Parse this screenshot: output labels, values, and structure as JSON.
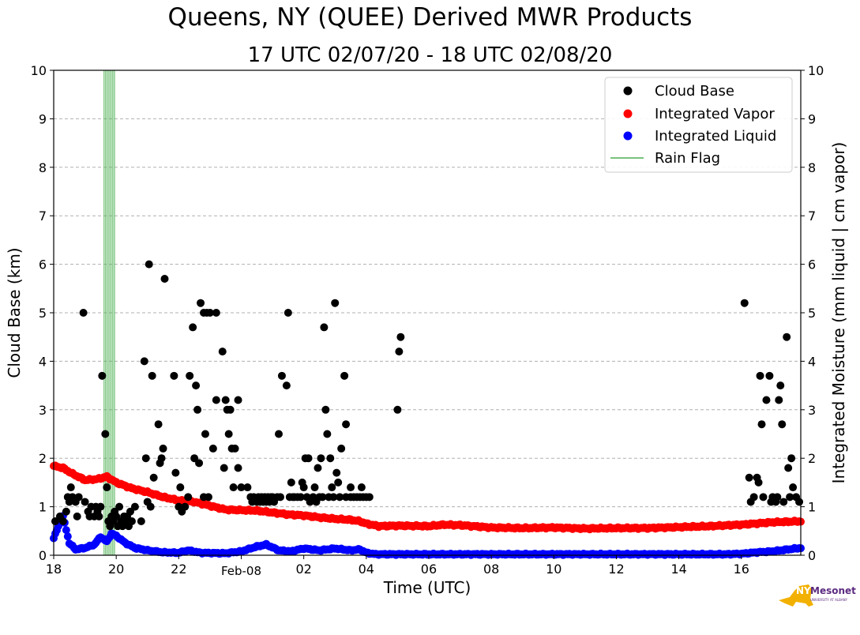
{
  "header": {
    "title": "Queens, NY (QUEE) Derived MWR Products",
    "subtitle": "17 UTC 02/07/20 - 18 UTC 02/08/20"
  },
  "logo": {
    "word1": "NYS",
    "word2": "Mesonet",
    "sub": "UNIVERSITY AT ALBANY"
  },
  "colors": {
    "cloud_base": "#000000",
    "vapor": "#ff0000",
    "liquid": "#0000ff",
    "rain": "#4caf50",
    "grid": "#b0b0b0"
  },
  "chart_data": {
    "type": "scatter",
    "xlabel": "Time (UTC)",
    "ylabel": "Cloud Base (km)",
    "y2label": "Integrated Moisture (mm liquid | cm vapor)",
    "xlim": [
      18,
      41.9
    ],
    "ylim": [
      0,
      10
    ],
    "y2lim": [
      0,
      10
    ],
    "x_ticks": [
      {
        "x": 18,
        "label": "18"
      },
      {
        "x": 20,
        "label": "20"
      },
      {
        "x": 22,
        "label": "22"
      },
      {
        "x": 24,
        "label": "Feb-08"
      },
      {
        "x": 26,
        "label": "02"
      },
      {
        "x": 28,
        "label": "04"
      },
      {
        "x": 30,
        "label": "06"
      },
      {
        "x": 32,
        "label": "08"
      },
      {
        "x": 34,
        "label": "10"
      },
      {
        "x": 36,
        "label": "12"
      },
      {
        "x": 38,
        "label": "14"
      },
      {
        "x": 40,
        "label": "16"
      }
    ],
    "y_ticks": [
      "0",
      "1",
      "2",
      "3",
      "4",
      "5",
      "6",
      "7",
      "8",
      "9",
      "10"
    ],
    "grid": true,
    "legend": {
      "position": "top-right",
      "entries": [
        "Cloud Base",
        "Integrated Vapor",
        "Integrated Liquid",
        "Rain Flag"
      ]
    },
    "rain_flag": {
      "start": 19.6,
      "end": 19.98
    },
    "vapor_keypoints": [
      [
        18.0,
        1.84
      ],
      [
        18.3,
        1.8
      ],
      [
        18.6,
        1.68
      ],
      [
        19.0,
        1.55
      ],
      [
        19.4,
        1.57
      ],
      [
        19.7,
        1.62
      ],
      [
        20.0,
        1.5
      ],
      [
        20.5,
        1.38
      ],
      [
        21.0,
        1.3
      ],
      [
        21.5,
        1.2
      ],
      [
        22.0,
        1.13
      ],
      [
        22.5,
        1.1
      ],
      [
        23.0,
        1.02
      ],
      [
        23.5,
        0.94
      ],
      [
        24.0,
        0.93
      ],
      [
        24.5,
        0.92
      ],
      [
        25.0,
        0.88
      ],
      [
        25.5,
        0.84
      ],
      [
        26.0,
        0.82
      ],
      [
        26.5,
        0.78
      ],
      [
        27.0,
        0.75
      ],
      [
        27.5,
        0.73
      ],
      [
        27.8,
        0.7
      ],
      [
        28.0,
        0.65
      ],
      [
        28.4,
        0.6
      ],
      [
        29.0,
        0.61
      ],
      [
        30.0,
        0.6
      ],
      [
        30.5,
        0.63
      ],
      [
        31.0,
        0.62
      ],
      [
        32.0,
        0.57
      ],
      [
        33.0,
        0.56
      ],
      [
        34.0,
        0.57
      ],
      [
        35.0,
        0.55
      ],
      [
        36.0,
        0.56
      ],
      [
        37.0,
        0.56
      ],
      [
        38.0,
        0.58
      ],
      [
        39.0,
        0.6
      ],
      [
        40.0,
        0.63
      ],
      [
        41.0,
        0.68
      ],
      [
        41.9,
        0.7
      ]
    ],
    "liquid_keypoints": [
      [
        18.0,
        0.35
      ],
      [
        18.15,
        0.6
      ],
      [
        18.3,
        0.8
      ],
      [
        18.5,
        0.25
      ],
      [
        18.7,
        0.12
      ],
      [
        19.0,
        0.15
      ],
      [
        19.3,
        0.22
      ],
      [
        19.5,
        0.38
      ],
      [
        19.7,
        0.28
      ],
      [
        19.85,
        0.45
      ],
      [
        20.0,
        0.4
      ],
      [
        20.3,
        0.25
      ],
      [
        20.6,
        0.15
      ],
      [
        21.0,
        0.1
      ],
      [
        21.5,
        0.06
      ],
      [
        22.0,
        0.05
      ],
      [
        22.3,
        0.1
      ],
      [
        22.7,
        0.05
      ],
      [
        23.5,
        0.04
      ],
      [
        24.0,
        0.08
      ],
      [
        24.5,
        0.18
      ],
      [
        24.8,
        0.22
      ],
      [
        25.2,
        0.1
      ],
      [
        25.6,
        0.08
      ],
      [
        26.0,
        0.14
      ],
      [
        26.5,
        0.1
      ],
      [
        27.0,
        0.14
      ],
      [
        27.5,
        0.1
      ],
      [
        27.8,
        0.12
      ],
      [
        28.0,
        0.05
      ],
      [
        28.3,
        0.02
      ],
      [
        29.0,
        0.02
      ],
      [
        30.0,
        0.02
      ],
      [
        35.0,
        0.02
      ],
      [
        39.5,
        0.02
      ],
      [
        40.0,
        0.03
      ],
      [
        40.5,
        0.06
      ],
      [
        41.0,
        0.08
      ],
      [
        41.5,
        0.12
      ],
      [
        41.9,
        0.15
      ]
    ],
    "cloud_base_points": [
      [
        18.05,
        0.7
      ],
      [
        18.2,
        0.8
      ],
      [
        18.3,
        0.7
      ],
      [
        18.4,
        0.9
      ],
      [
        18.45,
        1.2
      ],
      [
        18.5,
        1.1
      ],
      [
        18.55,
        1.4
      ],
      [
        18.6,
        1.2
      ],
      [
        18.7,
        1.1
      ],
      [
        18.75,
        0.8
      ],
      [
        18.8,
        1.2
      ],
      [
        18.95,
        5.0
      ],
      [
        19.0,
        1.1
      ],
      [
        19.1,
        0.9
      ],
      [
        19.15,
        0.8
      ],
      [
        19.2,
        1.0
      ],
      [
        19.3,
        0.8
      ],
      [
        19.35,
        1.0
      ],
      [
        19.4,
        0.9
      ],
      [
        19.45,
        0.8
      ],
      [
        19.5,
        1.0
      ],
      [
        19.55,
        3.7
      ],
      [
        19.65,
        2.5
      ],
      [
        19.7,
        1.4
      ],
      [
        19.75,
        0.7
      ],
      [
        19.8,
        0.6
      ],
      [
        19.85,
        0.8
      ],
      [
        19.9,
        0.7
      ],
      [
        19.95,
        0.9
      ],
      [
        20.0,
        0.8
      ],
      [
        20.05,
        0.6
      ],
      [
        20.1,
        1.0
      ],
      [
        20.15,
        0.7
      ],
      [
        20.2,
        0.6
      ],
      [
        20.25,
        0.8
      ],
      [
        20.3,
        0.7
      ],
      [
        20.35,
        0.8
      ],
      [
        20.4,
        0.6
      ],
      [
        20.45,
        0.9
      ],
      [
        20.5,
        0.7
      ],
      [
        20.6,
        1.0
      ],
      [
        20.8,
        0.7
      ],
      [
        20.9,
        4.0
      ],
      [
        20.95,
        2.0
      ],
      [
        21.0,
        1.1
      ],
      [
        21.05,
        6.0
      ],
      [
        21.1,
        1.0
      ],
      [
        21.15,
        3.7
      ],
      [
        21.2,
        1.6
      ],
      [
        21.35,
        2.7
      ],
      [
        21.4,
        1.9
      ],
      [
        21.45,
        2.0
      ],
      [
        21.5,
        2.2
      ],
      [
        21.55,
        5.7
      ],
      [
        21.85,
        3.7
      ],
      [
        21.9,
        1.7
      ],
      [
        22.0,
        1.0
      ],
      [
        22.05,
        1.4
      ],
      [
        22.1,
        0.9
      ],
      [
        22.2,
        1.0
      ],
      [
        22.3,
        1.2
      ],
      [
        22.35,
        3.7
      ],
      [
        22.45,
        4.7
      ],
      [
        22.5,
        2.0
      ],
      [
        22.55,
        3.5
      ],
      [
        22.6,
        3.0
      ],
      [
        22.65,
        1.9
      ],
      [
        22.7,
        5.2
      ],
      [
        22.8,
        5.0
      ],
      [
        22.8,
        1.2
      ],
      [
        22.9,
        5.0
      ],
      [
        22.85,
        2.5
      ],
      [
        22.95,
        1.2
      ],
      [
        23.0,
        5.0
      ],
      [
        23.1,
        2.2
      ],
      [
        23.2,
        3.2
      ],
      [
        23.2,
        5.0
      ],
      [
        23.4,
        4.2
      ],
      [
        23.5,
        3.2
      ],
      [
        23.45,
        1.8
      ],
      [
        23.55,
        3.0
      ],
      [
        23.6,
        2.5
      ],
      [
        23.65,
        3.0
      ],
      [
        23.7,
        2.2
      ],
      [
        23.75,
        1.4
      ],
      [
        23.8,
        2.2
      ],
      [
        23.9,
        3.2
      ],
      [
        23.9,
        1.8
      ],
      [
        24.0,
        1.4
      ],
      [
        24.2,
        1.4
      ],
      [
        24.3,
        1.2
      ],
      [
        24.35,
        1.1
      ],
      [
        24.4,
        1.2
      ],
      [
        24.5,
        1.1
      ],
      [
        24.55,
        1.2
      ],
      [
        24.6,
        1.1
      ],
      [
        24.65,
        1.2
      ],
      [
        24.7,
        1.1
      ],
      [
        24.75,
        1.2
      ],
      [
        24.8,
        1.1
      ],
      [
        24.85,
        1.2
      ],
      [
        24.9,
        1.1
      ],
      [
        24.95,
        1.2
      ],
      [
        25.0,
        1.2
      ],
      [
        25.05,
        1.1
      ],
      [
        25.15,
        1.2
      ],
      [
        25.2,
        2.5
      ],
      [
        25.25,
        1.2
      ],
      [
        25.3,
        3.7
      ],
      [
        25.45,
        3.5
      ],
      [
        25.5,
        5.0
      ],
      [
        25.55,
        1.2
      ],
      [
        25.6,
        1.5
      ],
      [
        25.65,
        1.2
      ],
      [
        25.7,
        1.2
      ],
      [
        25.8,
        1.2
      ],
      [
        25.9,
        1.2
      ],
      [
        25.95,
        1.5
      ],
      [
        26.0,
        1.4
      ],
      [
        26.05,
        2.0
      ],
      [
        26.1,
        1.2
      ],
      [
        26.15,
        2.0
      ],
      [
        26.2,
        1.1
      ],
      [
        26.3,
        1.2
      ],
      [
        26.35,
        1.4
      ],
      [
        26.4,
        1.1
      ],
      [
        26.45,
        1.8
      ],
      [
        26.5,
        1.2
      ],
      [
        26.55,
        2.0
      ],
      [
        26.6,
        1.2
      ],
      [
        26.65,
        4.7
      ],
      [
        26.7,
        3.0
      ],
      [
        26.75,
        2.5
      ],
      [
        26.8,
        1.2
      ],
      [
        26.85,
        2.0
      ],
      [
        26.9,
        1.4
      ],
      [
        26.95,
        1.2
      ],
      [
        27.0,
        5.2
      ],
      [
        27.05,
        1.7
      ],
      [
        27.1,
        1.5
      ],
      [
        27.15,
        1.2
      ],
      [
        27.2,
        2.2
      ],
      [
        27.3,
        3.7
      ],
      [
        27.35,
        2.7
      ],
      [
        27.35,
        1.2
      ],
      [
        27.5,
        1.4
      ],
      [
        27.5,
        1.2
      ],
      [
        27.6,
        1.2
      ],
      [
        27.7,
        1.2
      ],
      [
        27.8,
        1.2
      ],
      [
        27.85,
        1.4
      ],
      [
        27.9,
        1.2
      ],
      [
        28.0,
        1.2
      ],
      [
        28.1,
        1.2
      ],
      [
        29.0,
        3.0
      ],
      [
        29.05,
        4.2
      ],
      [
        29.1,
        4.5
      ],
      [
        40.1,
        5.2
      ],
      [
        40.25,
        1.6
      ],
      [
        40.3,
        1.1
      ],
      [
        40.4,
        1.2
      ],
      [
        40.5,
        1.6
      ],
      [
        40.55,
        1.5
      ],
      [
        40.6,
        3.7
      ],
      [
        40.65,
        2.7
      ],
      [
        40.7,
        1.2
      ],
      [
        40.8,
        3.2
      ],
      [
        40.9,
        3.7
      ],
      [
        40.95,
        1.1
      ],
      [
        41.0,
        1.2
      ],
      [
        41.1,
        1.1
      ],
      [
        41.15,
        1.2
      ],
      [
        41.2,
        3.2
      ],
      [
        41.25,
        3.5
      ],
      [
        41.3,
        2.7
      ],
      [
        41.35,
        1.1
      ],
      [
        41.45,
        4.5
      ],
      [
        41.5,
        1.8
      ],
      [
        41.55,
        1.2
      ],
      [
        41.6,
        2.0
      ],
      [
        41.65,
        1.4
      ],
      [
        41.75,
        1.2
      ],
      [
        41.85,
        1.1
      ]
    ]
  }
}
